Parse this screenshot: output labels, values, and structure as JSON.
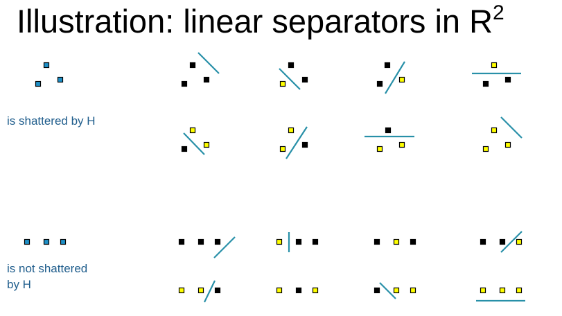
{
  "slide": {
    "title": "Illustration: linear separators in R",
    "title_sup": "2",
    "caption_shattered": "is shattered by H",
    "caption_not_shattered_line1": "is not shattered",
    "caption_not_shattered_line2": "by H"
  },
  "colors": {
    "unlabeled_point": "#1e90c8",
    "positive_point": "#ffff00",
    "negative_point": "#000000",
    "separator_line": "#2890a8",
    "caption_text": "#1f5d8c"
  },
  "legend": {
    "unlabeled": "blue square = point to be labeled",
    "positive": "yellow square",
    "negative": "black square"
  }
}
